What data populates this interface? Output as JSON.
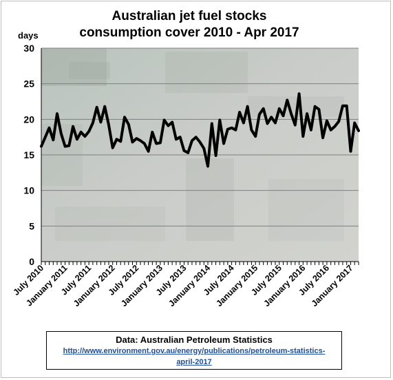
{
  "chart_data": {
    "type": "line",
    "title_line1": "Australian  jet fuel stocks",
    "title_line2": "consumption  cover 2010 - Apr 2017",
    "ylabel": "days",
    "ylim": [
      0,
      30
    ],
    "yticks": [
      0,
      5,
      10,
      15,
      20,
      25,
      30
    ],
    "grid": true,
    "legend": "none",
    "line_color": "#000000",
    "x_tick_labels": [
      "July 2010",
      "January 2011",
      "July 2011",
      "January 2012",
      "July 2012",
      "January 2013",
      "July 2013",
      "January 2014",
      "July 2014",
      "January 2015",
      "July 2015",
      "January 2016",
      "July 2016",
      "January 2017"
    ],
    "x_start": "2010-07",
    "x_end": "2017-04",
    "series": [
      {
        "values": [
          16.2,
          17.5,
          18.8,
          17.1,
          20.8,
          18.0,
          16.2,
          16.3,
          19.0,
          17.2,
          18.2,
          17.6,
          18.3,
          19.5,
          21.7,
          19.6,
          21.8,
          19.2,
          16.0,
          17.2,
          16.9,
          20.3,
          19.3,
          16.8,
          17.3,
          17.0,
          16.6,
          15.5,
          18.2,
          16.6,
          16.7,
          19.9,
          19.1,
          19.6,
          17.2,
          17.5,
          15.6,
          15.3,
          17.0,
          17.5,
          16.8,
          15.9,
          13.4,
          19.4,
          14.9,
          19.9,
          16.6,
          18.6,
          18.8,
          18.5,
          21.0,
          19.5,
          21.8,
          18.5,
          17.6,
          20.7,
          21.5,
          19.4,
          20.3,
          19.5,
          21.5,
          20.5,
          22.7,
          20.8,
          19.2,
          23.6,
          17.6,
          20.8,
          18.5,
          21.8,
          21.4,
          17.4,
          19.8,
          18.5,
          19.0,
          19.7,
          21.9,
          21.9,
          15.5,
          19.5,
          18.4
        ]
      }
    ]
  },
  "source": {
    "label": "Data: Australian Petroleum Statistics",
    "link": "http://www.environment.gov.au/energy/publications/petroleum-statistics-april-2017"
  },
  "colors": {
    "plot_background": "#c8ccc6",
    "background_tint": "#9aa39a",
    "gridline": "#7f7f7f"
  }
}
